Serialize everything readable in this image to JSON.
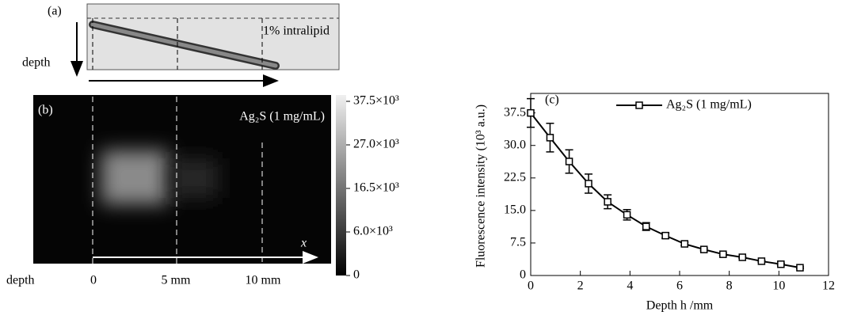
{
  "panel_a": {
    "label": "(a)",
    "medium": "1% intralipid",
    "depth": "depth"
  },
  "panel_b": {
    "label": "(b)",
    "sample": "Ag₂S (1 mg/mL)",
    "axis": "x",
    "colorbar": [
      "37.5×10³",
      "27.0×10³",
      "16.5×10³",
      "6.0×10³",
      "0"
    ],
    "depth": "depth",
    "positions": [
      "0",
      "5 mm",
      "10 mm"
    ]
  },
  "chart_data": {
    "type": "line",
    "label": "(c)",
    "x_label": "Depth h /mm",
    "y_label": "Fluorescence intensity (10³ a.u.)",
    "xlim": [
      0,
      12
    ],
    "xticks": [
      0,
      2,
      4,
      6,
      8,
      10,
      12
    ],
    "ylim": [
      0,
      42
    ],
    "yticks": [
      0,
      7.5,
      {
        "value": 15,
        "label": "15.0"
      },
      22.5,
      {
        "value": 30,
        "label": "30.0"
      },
      37.5
    ],
    "x": [
      0,
      0.78,
      1.55,
      2.33,
      3.1,
      3.88,
      4.65,
      5.43,
      6.2,
      6.98,
      7.75,
      8.53,
      9.3,
      10.08,
      10.85
    ],
    "series": [
      {
        "name": "Ag₂S (1 mg/mL)",
        "color": "#000000",
        "values": [
          37.5,
          31.8,
          26.3,
          21.2,
          17.0,
          14.0,
          11.3,
          9.2,
          7.3,
          6.0,
          4.9,
          4.2,
          3.3,
          2.6,
          1.8
        ],
        "errors": [
          3.3,
          3.3,
          2.7,
          2.2,
          1.6,
          1.2,
          0.9,
          0.6,
          0.4,
          0.3,
          0.3,
          0.2,
          0.2,
          0.2,
          0.2
        ]
      }
    ],
    "legend": "top-right"
  }
}
